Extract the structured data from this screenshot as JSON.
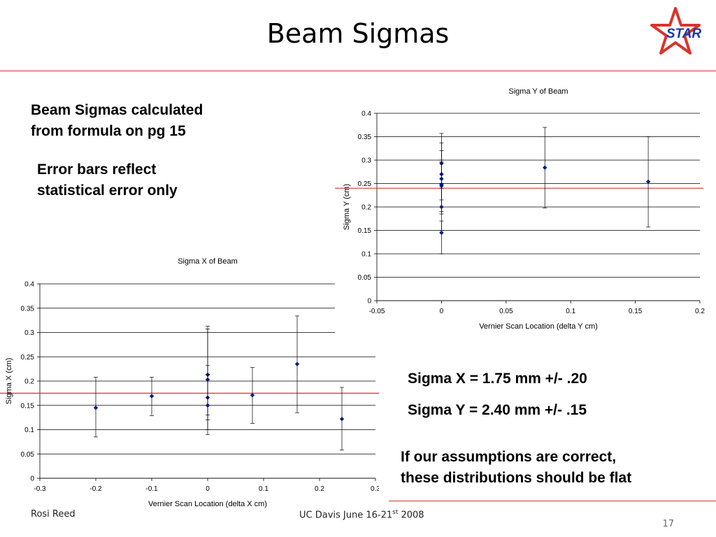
{
  "slide": {
    "title": "Beam Sigmas",
    "logo_text": "STAR",
    "bullets": {
      "calc": [
        "Beam Sigmas calculated",
        "from formula on pg 15"
      ],
      "error": [
        "Error bars reflect",
        "statistical error only"
      ],
      "sigma_x": "Sigma X = 1.75 mm +/- .20",
      "sigma_y": "Sigma Y = 2.40 mm +/- .15",
      "assumption": [
        "If our assumptions are correct,",
        "these distributions should be flat"
      ]
    },
    "footer": {
      "author": "Rosi Reed",
      "event_prefix": "UC Davis June 16-21",
      "event_sup": "st",
      "event_suffix": " 2008",
      "page": "17"
    }
  },
  "colors": {
    "accent_red": "#d9342b",
    "marker": "#0a1a8c",
    "gridline": "#000000"
  },
  "chart_data": [
    {
      "id": "sigma-y",
      "type": "scatter",
      "title": "Sigma Y of Beam",
      "xlabel": "Vernier Scan Location (delta Y cm)",
      "ylabel": "Sigma Y (cm)",
      "xlim": [
        -0.05,
        0.2
      ],
      "ylim": [
        0,
        0.4
      ],
      "xticks": [
        "-0.05",
        "0",
        "0.05",
        "0.1",
        "0.15",
        "0.2"
      ],
      "xtick_values": [
        -0.05,
        0,
        0.05,
        0.1,
        0.15,
        0.2
      ],
      "yticks": [
        "0",
        "0.05",
        "0.1",
        "0.15",
        "0.2",
        "0.25",
        "0.3",
        "0.35",
        "0.4"
      ],
      "ytick_values": [
        0,
        0.05,
        0.1,
        0.15,
        0.2,
        0.25,
        0.3,
        0.35,
        0.4
      ],
      "grid": "horizontal",
      "reference_line": 0.24,
      "points": [
        {
          "x": 0,
          "y": 0.293,
          "err_low": 0.24,
          "err_high": 0.357
        },
        {
          "x": 0,
          "y": 0.27,
          "err_low": 0.215,
          "err_high": 0.337
        },
        {
          "x": 0,
          "y": 0.26,
          "err_low": 0.2,
          "err_high": 0.32
        },
        {
          "x": 0,
          "y": 0.248,
          "err_low": 0.19,
          "err_high": 0.3
        },
        {
          "x": 0,
          "y": 0.245,
          "err_low": 0.185,
          "err_high": 0.296
        },
        {
          "x": 0,
          "y": 0.2,
          "err_low": 0.15,
          "err_high": 0.25
        },
        {
          "x": 0,
          "y": 0.145,
          "err_low": 0.1,
          "err_high": 0.17
        },
        {
          "x": 0.08,
          "y": 0.284,
          "err_low": 0.198,
          "err_high": 0.37
        },
        {
          "x": 0.16,
          "y": 0.254,
          "err_low": 0.157,
          "err_high": 0.35
        }
      ]
    },
    {
      "id": "sigma-x",
      "type": "scatter",
      "title": "Sigma X of Beam",
      "xlabel": "Vernier Scan Location (delta X cm)",
      "ylabel": "Sigma X (cm)",
      "xlim": [
        -0.3,
        0.3
      ],
      "ylim": [
        0,
        0.4
      ],
      "xticks": [
        "-0.3",
        "-0.2",
        "-0.1",
        "0",
        "0.1",
        "0.2",
        "0.3"
      ],
      "xtick_values": [
        -0.3,
        -0.2,
        -0.1,
        0,
        0.1,
        0.2,
        0.3
      ],
      "yticks": [
        "0",
        "0.05",
        "0.1",
        "0.15",
        "0.2",
        "0.25",
        "0.3",
        "0.35",
        "0.4"
      ],
      "ytick_values": [
        0,
        0.05,
        0.1,
        0.15,
        0.2,
        0.25,
        0.3,
        0.35,
        0.4
      ],
      "grid": "horizontal",
      "reference_line": 0.175,
      "points": [
        {
          "x": -0.2,
          "y": 0.145,
          "err_low": 0.085,
          "err_high": 0.208
        },
        {
          "x": -0.1,
          "y": 0.169,
          "err_low": 0.129,
          "err_high": 0.208
        },
        {
          "x": 0,
          "y": 0.213,
          "err_low": 0.13,
          "err_high": 0.313
        },
        {
          "x": 0,
          "y": 0.203,
          "err_low": 0.12,
          "err_high": 0.307
        },
        {
          "x": 0,
          "y": 0.166,
          "err_low": 0.1,
          "err_high": 0.232
        },
        {
          "x": 0,
          "y": 0.15,
          "err_low": 0.09,
          "err_high": 0.214
        },
        {
          "x": 0.08,
          "y": 0.171,
          "err_low": 0.113,
          "err_high": 0.228
        },
        {
          "x": 0.16,
          "y": 0.235,
          "err_low": 0.135,
          "err_high": 0.334
        },
        {
          "x": 0.24,
          "y": 0.122,
          "err_low": 0.058,
          "err_high": 0.187
        }
      ]
    }
  ]
}
